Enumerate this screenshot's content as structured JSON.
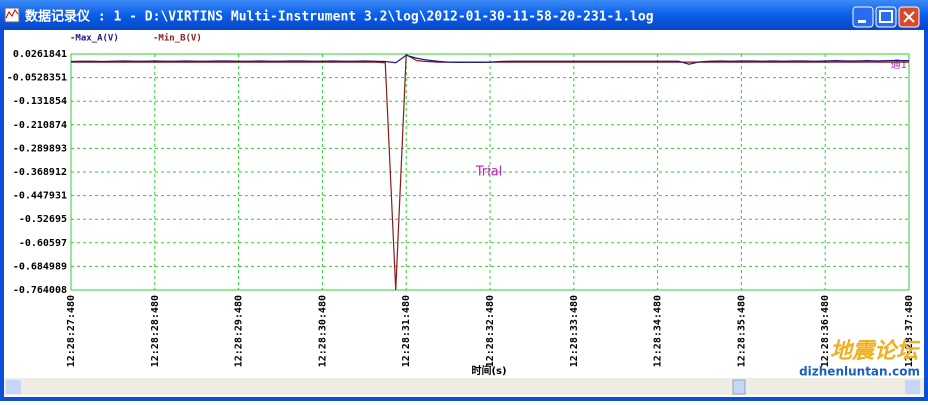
{
  "window": {
    "title": "数据记录仪 : 1 - D:\\VIRTINS Multi-Instrument 3.2\\log\\2012-01-30-11-58-20-231-1.log"
  },
  "chart_data": {
    "type": "line",
    "annotation": "Trial",
    "channel_label": "通1",
    "x_label": "时间(s)",
    "xticks": [
      "12:28:27:480",
      "12:28:28:480",
      "12:28:29:480",
      "12:28:30:480",
      "12:28:31:480",
      "12:28:32:480",
      "12:28:33:480",
      "12:28:34:480",
      "12:28:35:480",
      "12:28:36:480",
      "12:28:37:480"
    ],
    "ylim": [
      -0.764008,
      0.0261841
    ],
    "yticks": [
      0.0261841,
      -0.0528351,
      -0.131854,
      -0.210874,
      -0.289893,
      -0.368912,
      -0.447931,
      -0.52695,
      -0.60597,
      -0.684989,
      -0.764008
    ],
    "grid": true,
    "series": [
      {
        "name": "-Max_A(V)",
        "color": "#1a1a8c",
        "values": [
          0.001,
          0.002,
          0.002,
          0.001,
          0.002,
          0.003,
          0.002,
          0.002,
          0.003,
          0.002,
          0.002,
          0.003,
          0.002,
          0.002,
          0.003,
          0.003,
          0.002,
          0.002,
          0.003,
          0.002,
          0.002,
          0.003,
          0.003,
          0.002,
          0.002,
          0.003,
          0.002,
          0.002,
          0.003,
          0.002,
          0.001,
          -0.003,
          0.022,
          0.012,
          0.006,
          0.002,
          -0.001,
          -0.002,
          -0.001,
          -0.002,
          -0.001,
          0.001,
          0.002,
          0.002,
          0.002,
          0.002,
          0.002,
          0.002,
          0.002,
          0.002,
          0.002,
          0.002,
          0.002,
          0.002,
          0.002,
          0.002,
          0.002,
          0.002,
          0.002,
          -0.008,
          0.0,
          0.002,
          0.003,
          0.002,
          0.003,
          0.003,
          0.002,
          0.003,
          0.002,
          0.003,
          0.003,
          0.002,
          0.003,
          0.004,
          0.003,
          0.003,
          0.004,
          0.003,
          0.004,
          0.004,
          0.004
        ]
      },
      {
        "name": "-Min_B(V)",
        "color": "#8b1a1a",
        "values": [
          -0.001,
          -0.001,
          -0.001,
          -0.001,
          -0.001,
          -0.001,
          -0.001,
          -0.001,
          -0.001,
          -0.001,
          -0.001,
          -0.001,
          -0.001,
          -0.001,
          -0.001,
          -0.001,
          -0.001,
          -0.001,
          -0.001,
          -0.001,
          -0.001,
          -0.001,
          -0.001,
          -0.001,
          -0.001,
          -0.001,
          -0.001,
          -0.001,
          -0.001,
          -0.001,
          -0.003,
          -0.764,
          0.024,
          0.004,
          0.001,
          -0.001,
          -0.001,
          -0.001,
          -0.001,
          -0.001,
          -0.001,
          -0.001,
          -0.001,
          -0.001,
          -0.001,
          -0.001,
          -0.001,
          -0.001,
          -0.001,
          -0.001,
          -0.001,
          -0.001,
          -0.001,
          -0.001,
          -0.001,
          -0.001,
          -0.001,
          -0.001,
          -0.001,
          -0.001,
          -0.001,
          -0.001,
          -0.001,
          -0.001,
          -0.001,
          -0.001,
          -0.001,
          -0.001,
          -0.001,
          -0.001,
          -0.001,
          -0.001,
          -0.001,
          -0.001,
          -0.001,
          -0.001,
          -0.001,
          -0.001,
          -0.001,
          -0.001,
          -0.001
        ]
      }
    ]
  },
  "watermark": {
    "text": "地震论坛",
    "url": "dizhenluntan.com"
  }
}
